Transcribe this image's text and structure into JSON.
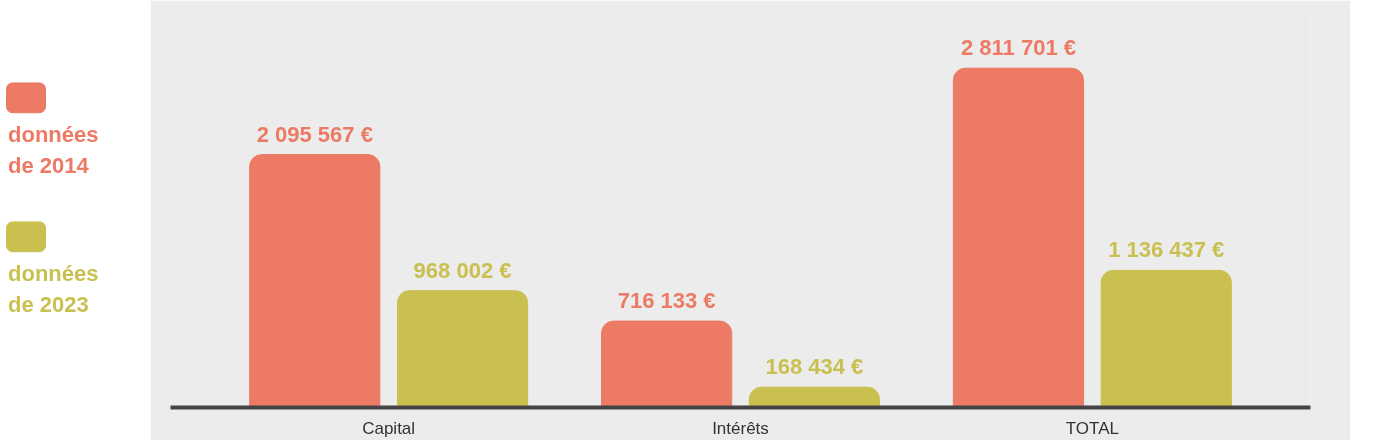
{
  "chart_data": {
    "type": "bar",
    "categories": [
      "Capital",
      "Intérêts",
      "TOTAL"
    ],
    "series": [
      {
        "name": "données de 2014",
        "color": "#ec7a64",
        "values": [
          2095567,
          716133,
          2811701
        ],
        "value_labels": [
          "2 095 567 €",
          "716 133 €",
          "2 811 701 €"
        ]
      },
      {
        "name": "données de 2023",
        "color": "#c9c050",
        "values": [
          968002,
          168434,
          1136437
        ],
        "value_labels": [
          "968 002 €",
          "168 434 €",
          "1 136 437 €"
        ]
      }
    ],
    "legend": "left",
    "grid": false
  }
}
